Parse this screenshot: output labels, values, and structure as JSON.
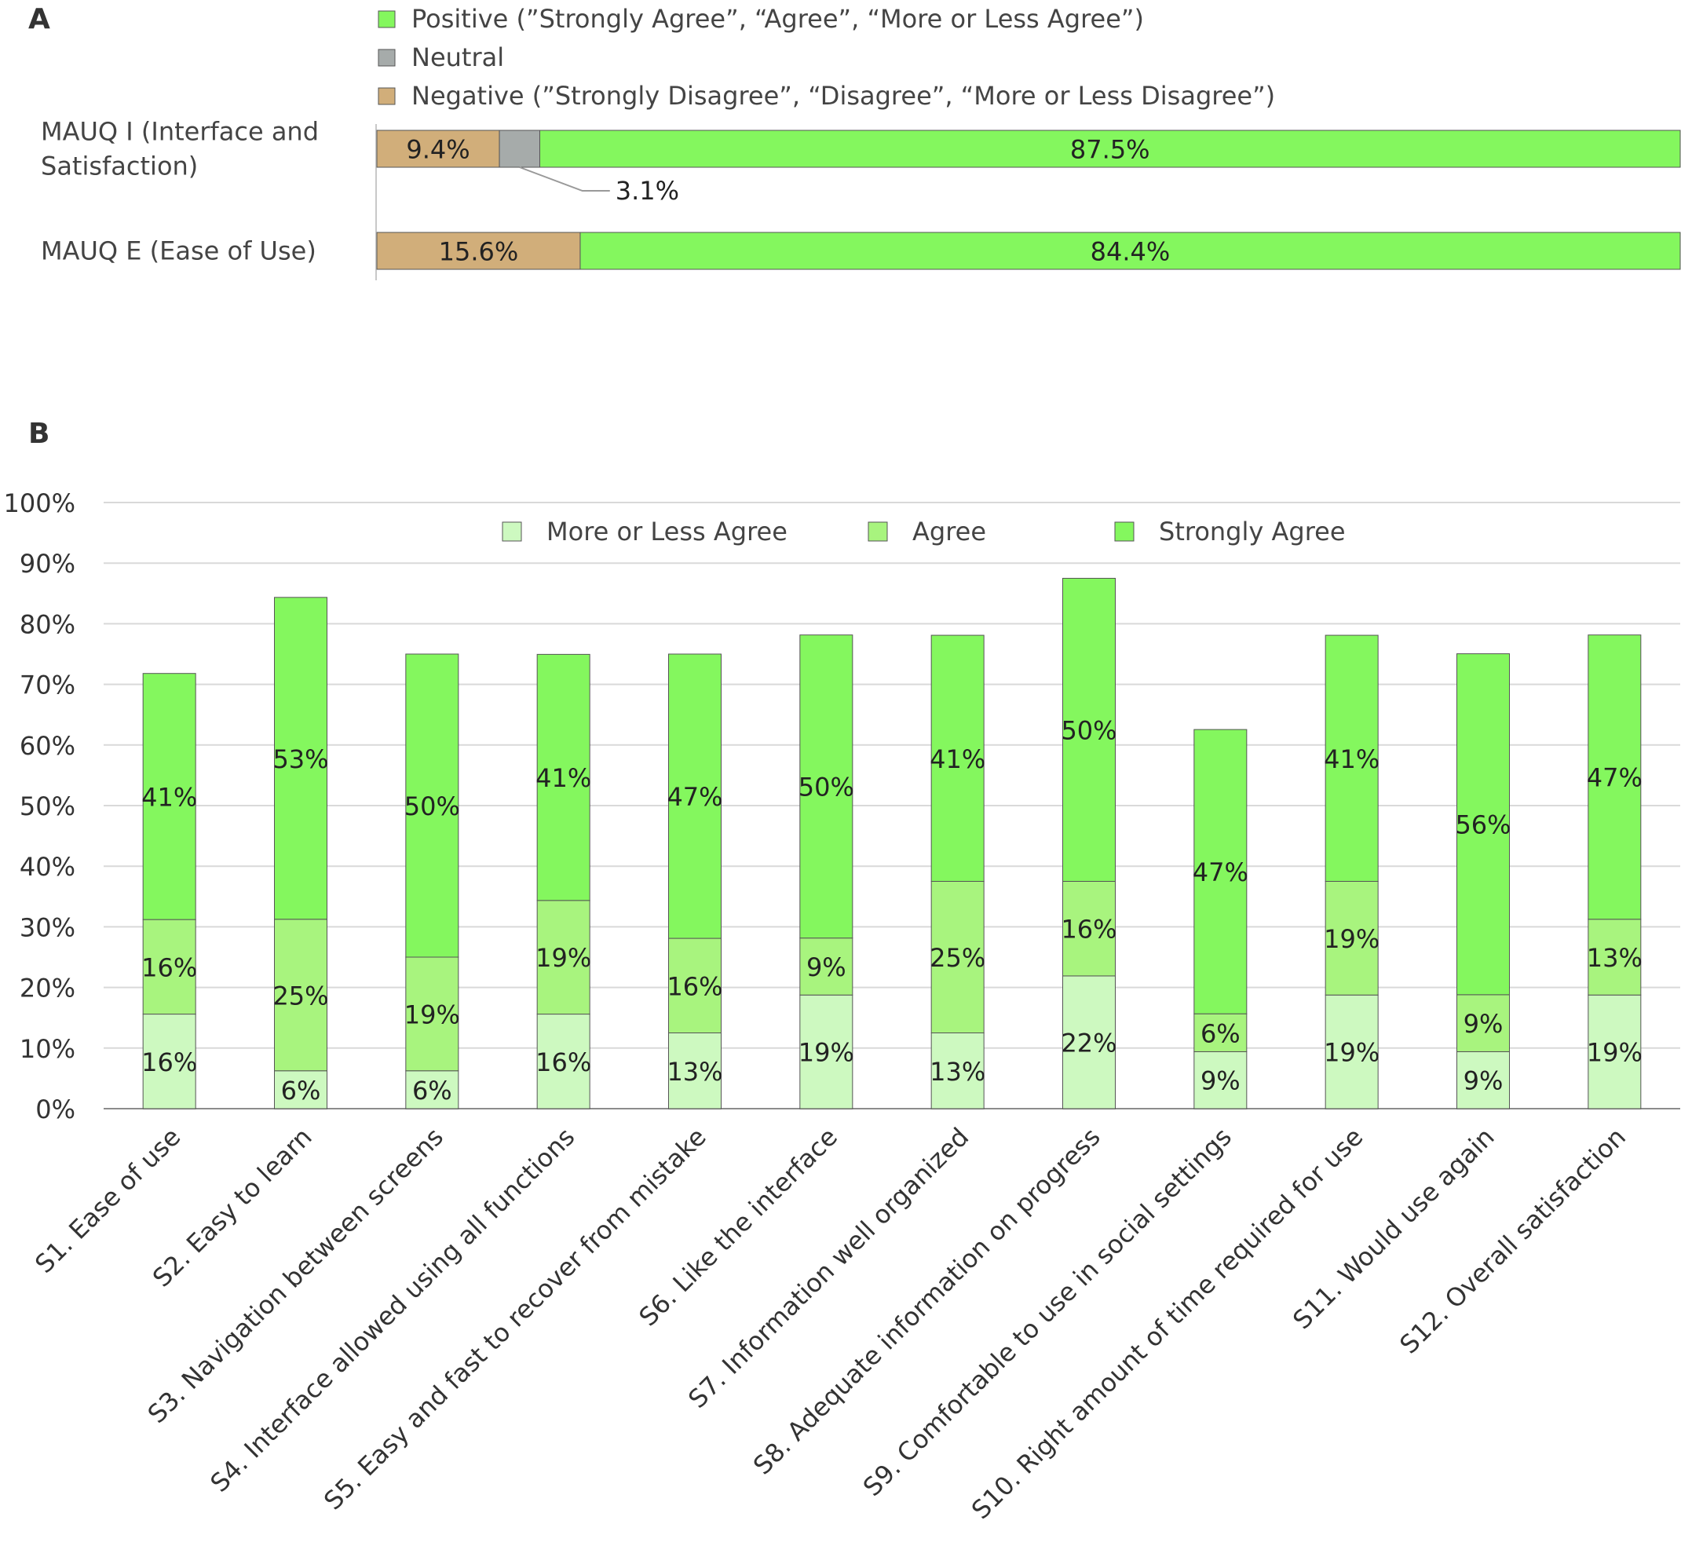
{
  "panel_a_label": "A",
  "panel_b_label": "B",
  "colors": {
    "positive": "#84f75e",
    "neutral": "#a6abaa",
    "negative": "#d1ae7a",
    "more_or_less_agree": "#cdf9c0",
    "agree": "#a8f47e",
    "strongly_agree": "#84f75e",
    "grid": "#d9d9d9",
    "axis": "#8c8c8c",
    "bar_border": "#555555"
  },
  "chart_data": [
    {
      "type": "bar",
      "orientation": "horizontal",
      "stacked": true,
      "legend": [
        {
          "key": "negative",
          "label": "Negative (”Strongly Disagree”, “Disagree”, “More or Less Disagree”)"
        },
        {
          "key": "neutral",
          "label": "Neutral"
        },
        {
          "key": "positive",
          "label": "Positive (”Strongly Agree”, “Agree”, “More or Less Agree”)"
        }
      ],
      "legend_position": "top",
      "categories": [
        {
          "label_lines": [
            "MAUQ I (Interface and",
            "Satisfaction)"
          ]
        },
        {
          "label_lines": [
            "MAUQ E (Ease of Use)"
          ]
        }
      ],
      "series": [
        {
          "key": "negative",
          "values": [
            9.4,
            15.6
          ],
          "labels": [
            "9.4%",
            "15.6%"
          ]
        },
        {
          "key": "neutral",
          "values": [
            3.1,
            0
          ],
          "labels": [
            "3.1%",
            ""
          ]
        },
        {
          "key": "positive",
          "values": [
            87.5,
            84.4
          ],
          "labels": [
            "87.5%",
            "84.4%"
          ]
        }
      ],
      "xlim": [
        0,
        100
      ]
    },
    {
      "type": "bar",
      "orientation": "vertical",
      "stacked": true,
      "legend": [
        {
          "key": "more_or_less_agree",
          "label": "More or Less Agree"
        },
        {
          "key": "agree",
          "label": "Agree"
        },
        {
          "key": "strongly_agree",
          "label": "Strongly Agree"
        }
      ],
      "legend_position": "top",
      "ylim": [
        0,
        100
      ],
      "y_ticks": [
        {
          "value": 0,
          "label": "0%"
        },
        {
          "value": 10,
          "label": "10%"
        },
        {
          "value": 20,
          "label": "20%"
        },
        {
          "value": 30,
          "label": "30%"
        },
        {
          "value": 40,
          "label": "40%"
        },
        {
          "value": 50,
          "label": "50%"
        },
        {
          "value": 60,
          "label": "60%"
        },
        {
          "value": 70,
          "label": "70%"
        },
        {
          "value": 80,
          "label": "80%"
        },
        {
          "value": 90,
          "label": "90%"
        },
        {
          "value": 100,
          "label": "100%"
        }
      ],
      "grid": true,
      "categories": [
        "S1. Ease of use",
        "S2. Easy to learn",
        "S3. Navigation between screens",
        "S4. Interface allowed using all functions",
        "S5. Easy and fast to recover from mistake",
        "S6. Like the interface",
        "S7. Information well organized",
        "S8. Adequate information on progress",
        "S9. Comfortable to use in social settings",
        "S10. Right amount of time required for use",
        "S11. Would use again",
        "S12. Overall satisfaction"
      ],
      "series": [
        {
          "key": "more_or_less_agree",
          "values": [
            15.6,
            6.25,
            6.25,
            15.6,
            12.5,
            18.75,
            12.5,
            21.9,
            9.4,
            18.75,
            9.4,
            18.75
          ],
          "labels": [
            "16%",
            "6%",
            "6%",
            "16%",
            "13%",
            "19%",
            "13%",
            "22%",
            "9%",
            "19%",
            "9%",
            "19%"
          ]
        },
        {
          "key": "agree",
          "values": [
            15.6,
            25,
            18.75,
            18.75,
            15.6,
            9.4,
            25,
            15.6,
            6.25,
            18.75,
            9.4,
            12.5
          ],
          "labels": [
            "16%",
            "25%",
            "19%",
            "19%",
            "16%",
            "9%",
            "25%",
            "16%",
            "6%",
            "19%",
            "9%",
            "13%"
          ]
        },
        {
          "key": "strongly_agree",
          "values": [
            40.6,
            53.1,
            50,
            40.6,
            46.9,
            50,
            40.6,
            50,
            46.9,
            40.6,
            56.25,
            46.9
          ],
          "labels": [
            "41%",
            "53%",
            "50%",
            "41%",
            "47%",
            "50%",
            "41%",
            "50%",
            "47%",
            "41%",
            "56%",
            "47%"
          ]
        }
      ]
    }
  ]
}
